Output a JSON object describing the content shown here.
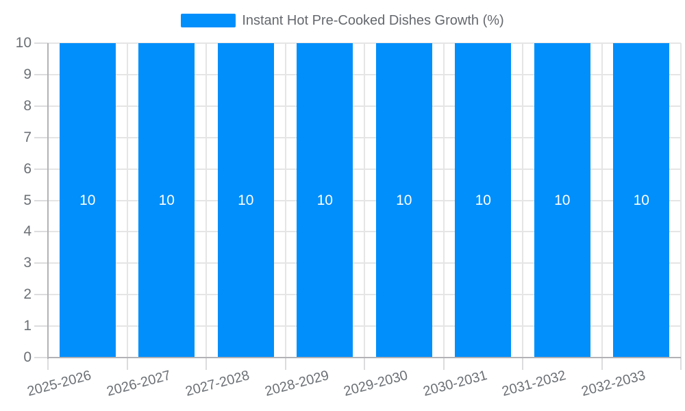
{
  "legend": {
    "label": "Instant Hot Pre-Cooked Dishes Growth (%)"
  },
  "chart_data": {
    "type": "bar",
    "title": "",
    "categories": [
      "2025-2026",
      "2026-2027",
      "2027-2028",
      "2028-2029",
      "2029-2030",
      "2030-2031",
      "2031-2032",
      "2032-2033"
    ],
    "series": [
      {
        "name": "Instant Hot Pre-Cooked Dishes Growth (%)",
        "values": [
          10,
          10,
          10,
          10,
          10,
          10,
          10,
          10
        ]
      }
    ],
    "data_labels": [
      "10",
      "10",
      "10",
      "10",
      "10",
      "10",
      "10",
      "10"
    ],
    "xlabel": "",
    "ylabel": "",
    "ylim": [
      0,
      10
    ],
    "yticks": [
      0,
      1,
      2,
      3,
      4,
      5,
      6,
      7,
      8,
      9,
      10
    ],
    "x_label_rotation_deg": -15,
    "grid": true,
    "legend_position": "top"
  },
  "colors": {
    "bar": "#008FFB",
    "grid": "#e5e5e5",
    "axis": "#b2b2b6",
    "tick": "#dcdcde",
    "axis_label": "#6b7075",
    "legend_text": "#64686d",
    "data_label": "#ffffff",
    "background": "#ffffff"
  }
}
